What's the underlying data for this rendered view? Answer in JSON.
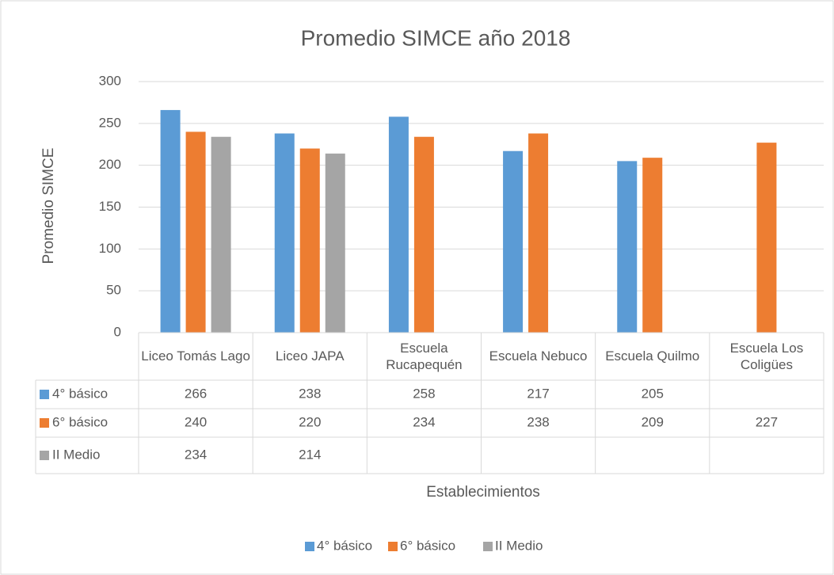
{
  "chart_data": {
    "type": "bar",
    "title": "Promedio SIMCE año 2018",
    "x_label": "Establecimientos",
    "y_label": "Promedio SIMCE",
    "categories": [
      "Liceo Tomás Lago",
      "Liceo JAPA",
      "Escuela Rucapequén",
      "Escuela Nebuco",
      "Escuela Quilmo",
      "Escuela Los Coligües"
    ],
    "series": [
      {
        "name": "4° básico",
        "color": "#5b9bd5",
        "values": [
          266,
          238,
          258,
          217,
          205,
          null
        ]
      },
      {
        "name": "6° básico",
        "color": "#ed7d31",
        "values": [
          240,
          220,
          234,
          238,
          209,
          227
        ]
      },
      {
        "name": "II Medio",
        "color": "#a5a5a5",
        "values": [
          234,
          214,
          null,
          null,
          null,
          null
        ]
      }
    ],
    "ylim": [
      0,
      300
    ],
    "yticks": [
      0,
      50,
      100,
      150,
      200,
      250,
      300
    ],
    "grid": true,
    "legend": "bottom"
  }
}
